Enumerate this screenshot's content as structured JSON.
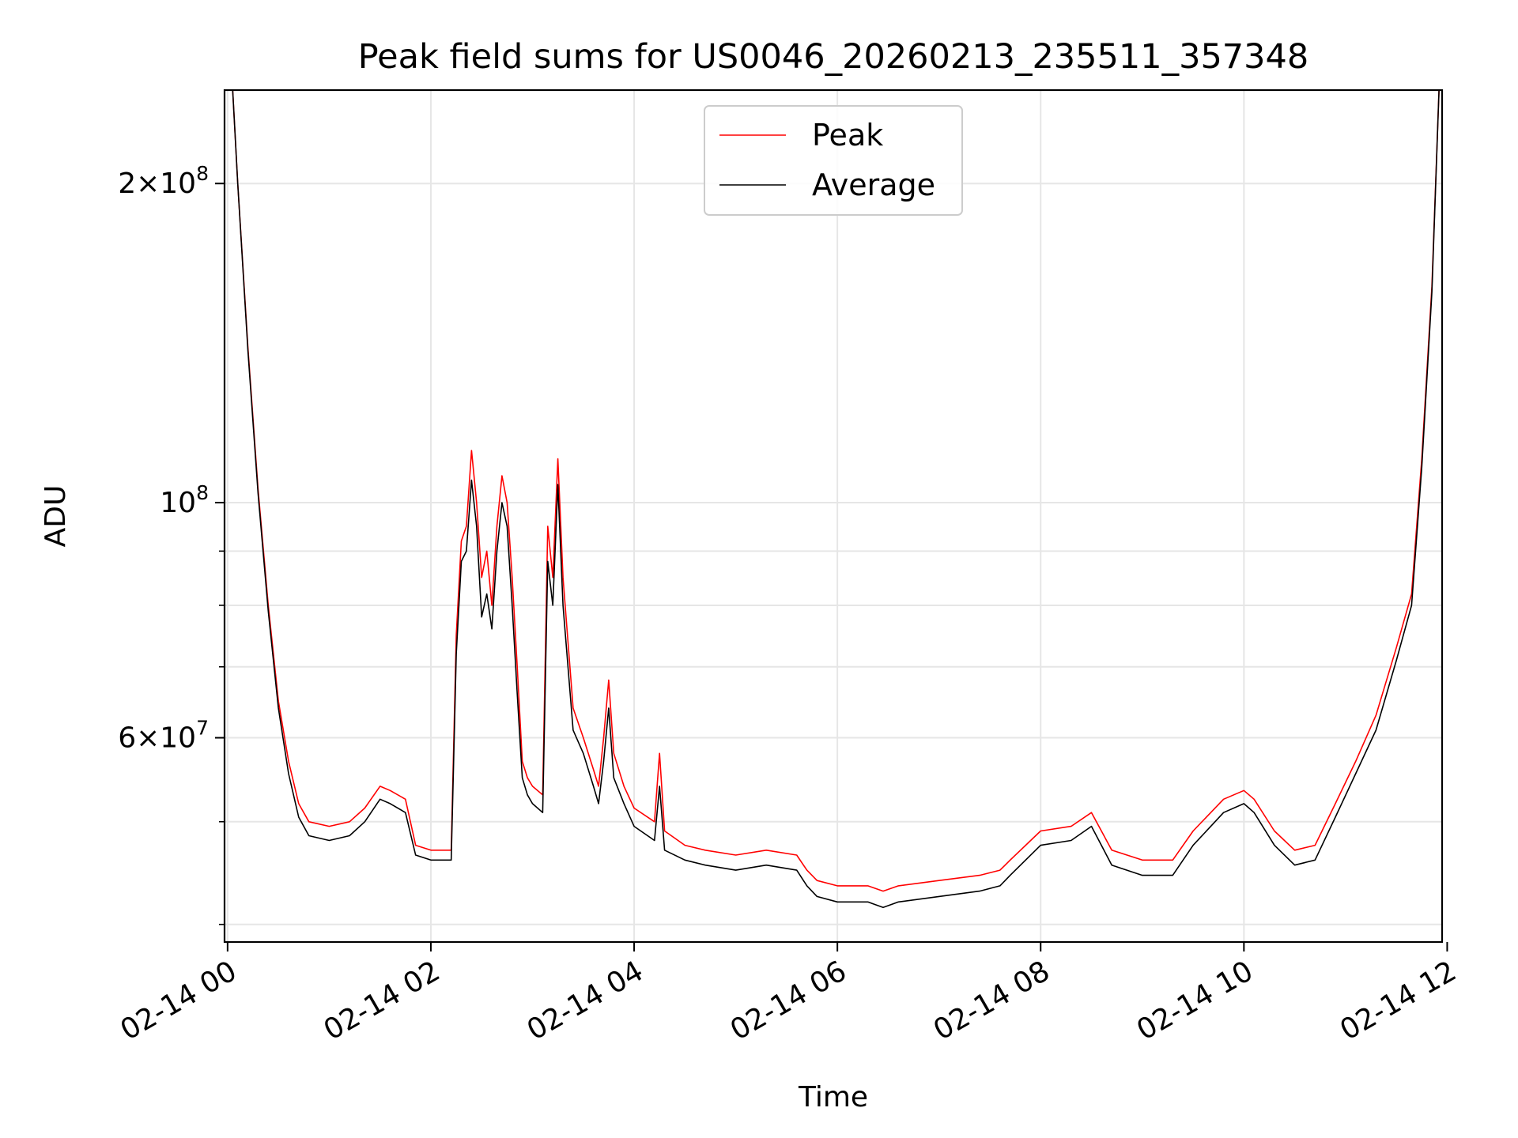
{
  "chart_data": {
    "type": "line",
    "title": "Peak field sums for US0046_20260213_235511_357348",
    "xlabel": "Time",
    "ylabel": "ADU",
    "y_scale": "log",
    "ylim": [
      38500000,
      245000000
    ],
    "xlim_hours": [
      -0.03,
      11.95
    ],
    "grid": true,
    "legend_position": "upper-center",
    "x_ticks": [
      {
        "hour": 0,
        "label": "02-14 00"
      },
      {
        "hour": 2,
        "label": "02-14 02"
      },
      {
        "hour": 4,
        "label": "02-14 04"
      },
      {
        "hour": 6,
        "label": "02-14 06"
      },
      {
        "hour": 8,
        "label": "02-14 08"
      },
      {
        "hour": 10,
        "label": "02-14 10"
      },
      {
        "hour": 12,
        "label": "02-14 12"
      }
    ],
    "y_major_ticks": [
      {
        "value": 60000000,
        "mant": "6",
        "exp": "7"
      },
      {
        "value": 100000000,
        "mant": "",
        "exp": "8"
      },
      {
        "value": 200000000,
        "mant": "2",
        "exp": "8"
      }
    ],
    "y_minor_ticks": [
      40000000,
      50000000,
      70000000,
      80000000,
      90000000,
      300000000
    ],
    "hours": [
      0.05,
      0.1,
      0.2,
      0.3,
      0.4,
      0.5,
      0.6,
      0.7,
      0.8,
      1.0,
      1.2,
      1.35,
      1.5,
      1.6,
      1.75,
      1.85,
      2.0,
      2.2,
      2.25,
      2.3,
      2.35,
      2.4,
      2.45,
      2.5,
      2.55,
      2.6,
      2.65,
      2.7,
      2.75,
      2.8,
      2.85,
      2.9,
      2.95,
      3.0,
      3.1,
      3.15,
      3.2,
      3.25,
      3.3,
      3.4,
      3.5,
      3.6,
      3.65,
      3.7,
      3.75,
      3.8,
      3.9,
      4.0,
      4.2,
      4.25,
      4.3,
      4.5,
      4.7,
      5.0,
      5.3,
      5.6,
      5.7,
      5.8,
      6.0,
      6.3,
      6.45,
      6.6,
      7.0,
      7.4,
      7.6,
      7.7,
      8.0,
      8.3,
      8.5,
      8.7,
      9.0,
      9.3,
      9.5,
      9.8,
      10.0,
      10.1,
      10.3,
      10.5,
      10.7,
      10.9,
      11.1,
      11.3,
      11.5,
      11.65,
      11.75,
      11.85,
      11.92
    ],
    "series": [
      {
        "name": "Peak",
        "color": "#ff0000",
        "values": [
          245000000,
          200000000,
          140000000,
          103000000,
          80000000,
          65000000,
          57000000,
          52000000,
          50000000,
          49500000,
          50000000,
          51500000,
          54000000,
          53500000,
          52500000,
          47500000,
          47000000,
          47000000,
          75000000,
          92000000,
          95000000,
          112000000,
          100000000,
          85000000,
          90000000,
          80000000,
          95000000,
          106000000,
          100000000,
          85000000,
          70000000,
          57000000,
          55000000,
          54000000,
          53000000,
          95000000,
          85000000,
          110000000,
          85000000,
          64000000,
          60000000,
          56000000,
          54000000,
          60000000,
          68000000,
          58000000,
          54000000,
          51500000,
          50000000,
          58000000,
          49000000,
          47500000,
          47000000,
          46500000,
          47000000,
          46500000,
          45000000,
          44000000,
          43500000,
          43500000,
          43000000,
          43500000,
          44000000,
          44500000,
          45000000,
          46000000,
          49000000,
          49500000,
          51000000,
          47000000,
          46000000,
          46000000,
          49000000,
          52500000,
          53500000,
          52500000,
          49000000,
          47000000,
          47500000,
          52000000,
          57000000,
          63000000,
          73000000,
          82000000,
          110000000,
          160000000,
          245000000
        ]
      },
      {
        "name": "Average",
        "color": "#000000",
        "values": [
          245000000,
          200000000,
          139000000,
          102000000,
          79000000,
          64000000,
          55500000,
          50500000,
          48500000,
          48000000,
          48500000,
          50000000,
          52500000,
          52000000,
          51000000,
          46500000,
          46000000,
          46000000,
          72000000,
          88000000,
          90000000,
          105000000,
          95000000,
          78000000,
          82000000,
          76000000,
          90000000,
          100000000,
          95000000,
          80000000,
          66000000,
          55000000,
          53000000,
          52000000,
          51000000,
          88000000,
          80000000,
          104000000,
          80000000,
          61000000,
          58000000,
          54000000,
          52000000,
          57000000,
          64000000,
          55000000,
          52000000,
          49500000,
          48000000,
          54000000,
          47000000,
          46000000,
          45500000,
          45000000,
          45500000,
          45000000,
          43500000,
          42500000,
          42000000,
          42000000,
          41500000,
          42000000,
          42500000,
          43000000,
          43500000,
          44500000,
          47500000,
          48000000,
          49500000,
          45500000,
          44500000,
          44500000,
          47500000,
          51000000,
          52000000,
          51000000,
          47500000,
          45500000,
          46000000,
          50500000,
          55500000,
          61000000,
          71000000,
          80000000,
          108000000,
          158000000,
          245000000
        ]
      }
    ]
  }
}
